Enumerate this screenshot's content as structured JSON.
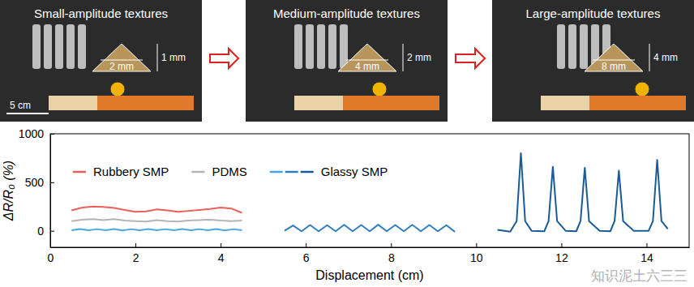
{
  "panels": [
    {
      "title": "Small-amplitude textures",
      "height": "1 mm",
      "width": "2 mm"
    },
    {
      "title": "Medium-amplitude textures",
      "height": "2 mm",
      "width": "4 mm"
    },
    {
      "title": "Large-amplitude textures",
      "height": "4 mm",
      "width": "8 mm"
    }
  ],
  "scale_bar": "5 cm",
  "watermark": "知识泥土六三三",
  "chart_data": {
    "type": "line",
    "x_label": "Displacement (cm)",
    "y_label": "ΔR/R₀ (%)",
    "xlim": [
      0,
      15
    ],
    "xticks": [
      0,
      2,
      4,
      6,
      8,
      10,
      12,
      14
    ],
    "ylim": [
      -170,
      1000
    ],
    "yticks": [
      0,
      500,
      1000
    ],
    "legend": "upper left",
    "series": [
      {
        "name": "Rubbery SMP",
        "color": "#e8605a",
        "x": [
          0.5,
          0.75,
          1,
          1.25,
          1.5,
          1.75,
          2,
          2.25,
          2.5,
          2.75,
          3,
          3.25,
          3.5,
          3.75,
          4,
          4.25,
          4.5
        ],
        "values": [
          210,
          240,
          250,
          245,
          235,
          215,
          195,
          200,
          220,
          210,
          195,
          205,
          215,
          225,
          240,
          230,
          185
        ]
      },
      {
        "name": "PDMS",
        "color": "#b4b4b4",
        "x": [
          0.5,
          0.75,
          1,
          1.25,
          1.5,
          1.75,
          2,
          2.25,
          2.5,
          2.75,
          3,
          3.25,
          3.5,
          3.75,
          4,
          4.25,
          4.5
        ],
        "values": [
          100,
          115,
          120,
          110,
          120,
          105,
          100,
          95,
          110,
          100,
          95,
          105,
          110,
          115,
          105,
          100,
          105
        ]
      },
      {
        "name": "Glassy SMP",
        "colors": [
          "#4aa8e0",
          "#2f7ec0",
          "#1a5c96"
        ],
        "x": [
          0.5,
          0.7,
          0.9,
          1.1,
          1.3,
          1.5,
          1.7,
          1.9,
          2.1,
          2.3,
          2.5,
          2.7,
          2.9,
          3.1,
          3.3,
          3.5,
          3.7,
          3.9,
          4.1,
          4.3,
          4.5,
          5.0,
          5.5,
          5.7,
          5.9,
          6.1,
          6.3,
          6.5,
          6.7,
          6.9,
          7.1,
          7.3,
          7.5,
          7.7,
          7.9,
          8.1,
          8.3,
          8.5,
          8.7,
          8.9,
          9.1,
          9.3,
          9.5,
          10.0,
          10.5,
          10.8,
          10.95,
          11.05,
          11.15,
          11.3,
          11.6,
          11.7,
          11.8,
          11.9,
          12.1,
          12.35,
          12.45,
          12.55,
          12.65,
          12.9,
          13.15,
          13.25,
          13.35,
          13.45,
          13.7,
          14.05,
          14.15,
          14.25,
          14.35,
          14.5
        ],
        "values": [
          5,
          18,
          6,
          17,
          5,
          18,
          4,
          17,
          6,
          18,
          5,
          17,
          5,
          18,
          6,
          17,
          5,
          18,
          4,
          17,
          6,
          null,
          0,
          55,
          -5,
          60,
          -5,
          58,
          -5,
          62,
          -5,
          60,
          -5,
          63,
          -5,
          60,
          -5,
          62,
          -5,
          60,
          -5,
          58,
          -10,
          null,
          10,
          -10,
          100,
          800,
          100,
          0,
          -5,
          100,
          660,
          100,
          0,
          -5,
          100,
          650,
          100,
          0,
          -5,
          100,
          620,
          100,
          0,
          0,
          100,
          730,
          100,
          20
        ]
      }
    ]
  }
}
